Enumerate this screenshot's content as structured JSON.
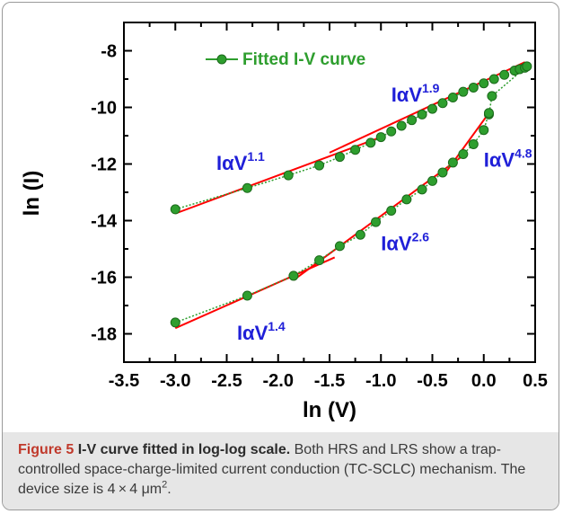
{
  "caption": {
    "label": "Figure 5",
    "title": "I-V curve fitted in log-log scale.",
    "text": "Both HRS and LRS show a trap-controlled space-charge-limited current conduction (TC-SCLC) mechanism. The device size is 4 × 4 μm",
    "superscript": "2",
    "end": "."
  },
  "chart_data": {
    "type": "scatter",
    "xlabel": "ln (V)",
    "ylabel": "ln (I)",
    "xlim": [
      -3.5,
      0.5
    ],
    "ylim": [
      -19,
      -7
    ],
    "xticks": [
      "-3.5",
      "-3.0",
      "-2.5",
      "-2.0",
      "-1.5",
      "-1.0",
      "-0.5",
      "0.0",
      "0.5"
    ],
    "yticks": [
      "-8",
      "-10",
      "-12",
      "-14",
      "-16",
      "-18"
    ],
    "legend": {
      "label": "Fitted I-V curve",
      "position": "top"
    },
    "colors": {
      "marker": "#2e9e2e",
      "fit": "#ff0000",
      "annotation": "#1f1fd8",
      "legend_text": "#2e9e2e"
    },
    "series": [
      {
        "name": "HRS",
        "x": [
          -3.0,
          -2.3,
          -1.9,
          -1.6,
          -1.4,
          -1.25,
          -1.1,
          -1.0,
          -0.9,
          -0.8,
          -0.7,
          -0.6,
          -0.5,
          -0.4,
          -0.3,
          -0.2,
          -0.1,
          0.0,
          0.1,
          0.2,
          0.3,
          0.35,
          0.4,
          0.42,
          0.08,
          0.05
        ],
        "y": [
          -13.6,
          -12.85,
          -12.4,
          -12.05,
          -11.75,
          -11.5,
          -11.25,
          -11.05,
          -10.85,
          -10.65,
          -10.45,
          -10.25,
          -10.05,
          -9.85,
          -9.65,
          -9.45,
          -9.3,
          -9.15,
          -9.0,
          -8.85,
          -8.7,
          -8.65,
          -8.6,
          -8.55,
          -9.6,
          -10.25
        ]
      },
      {
        "name": "LRS",
        "x": [
          -3.0,
          -2.3,
          -1.85,
          -1.6,
          -1.4,
          -1.2,
          -1.05,
          -0.9,
          -0.75,
          -0.6,
          -0.5,
          -0.4,
          -0.3,
          -0.2,
          -0.1,
          0.0,
          0.05
        ],
        "y": [
          -17.6,
          -16.65,
          -15.95,
          -15.4,
          -14.9,
          -14.5,
          -14.05,
          -13.65,
          -13.25,
          -12.9,
          -12.6,
          -12.3,
          -11.95,
          -11.65,
          -11.3,
          -10.8,
          -10.2
        ]
      }
    ],
    "fits": [
      {
        "x": [
          -3.0,
          -1.0
        ],
        "y": [
          -13.75,
          -11.05
        ]
      },
      {
        "x": [
          -1.5,
          0.4
        ],
        "y": [
          -11.6,
          -8.4
        ]
      },
      {
        "x": [
          -3.0,
          -1.45
        ],
        "y": [
          -17.8,
          -15.3
        ]
      },
      {
        "x": [
          -1.85,
          -0.2
        ],
        "y": [
          -16.1,
          -11.7
        ]
      },
      {
        "x": [
          -0.4,
          0.07
        ],
        "y": [
          -12.45,
          -10.1
        ]
      }
    ],
    "annotations": [
      {
        "base": "IαV",
        "exp": "1.9",
        "x": -0.9,
        "y": -9.8
      },
      {
        "base": "IαV",
        "exp": "1.1",
        "x": -2.6,
        "y": -12.2
      },
      {
        "base": "IαV",
        "exp": "4.8",
        "x": 0.0,
        "y": -12.1
      },
      {
        "base": "IαV",
        "exp": "2.6",
        "x": -1.0,
        "y": -15.05
      },
      {
        "base": "IαV",
        "exp": "1.4",
        "x": -2.4,
        "y": -18.2
      }
    ]
  }
}
